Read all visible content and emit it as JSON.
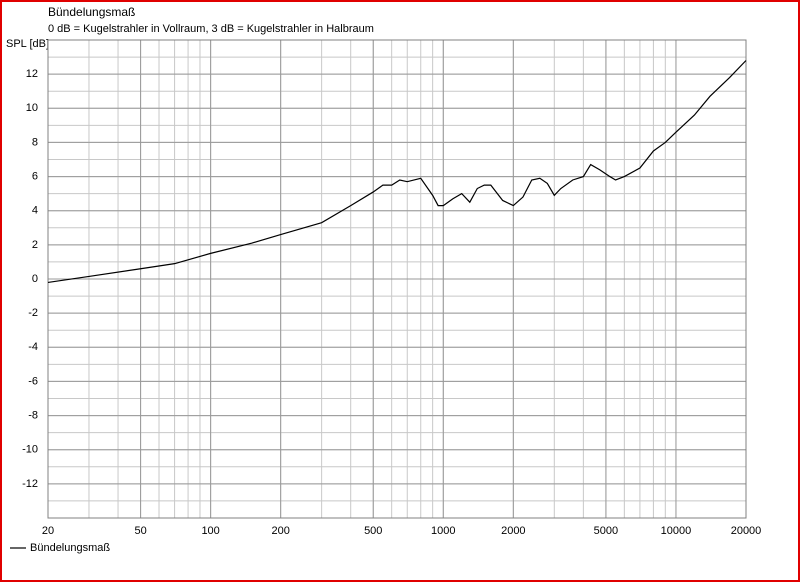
{
  "chart_data": {
    "type": "line",
    "title": "Bündelungsmaß",
    "subtitle": "0 dB = Kugelstrahler in Vollraum, 3 dB = Kugelstrahler in Halbraum",
    "y_label": "SPL [dB]",
    "x_scale": "log",
    "xlim": [
      20,
      20000
    ],
    "xticks": [
      20,
      50,
      100,
      200,
      500,
      1000,
      2000,
      5000,
      10000,
      20000
    ],
    "ylim": [
      -14,
      14
    ],
    "yticks": [
      -12,
      -10,
      -8,
      -6,
      -4,
      -2,
      0,
      2,
      4,
      6,
      8,
      10,
      12
    ],
    "grid": true,
    "minor_grid": true,
    "legend": "bottom-left",
    "x": [
      20,
      30,
      50,
      70,
      100,
      150,
      200,
      300,
      400,
      500,
      550,
      600,
      650,
      700,
      800,
      900,
      950,
      1000,
      1100,
      1200,
      1300,
      1400,
      1500,
      1600,
      1800,
      2000,
      2200,
      2400,
      2600,
      2800,
      3000,
      3200,
      3600,
      4000,
      4300,
      4700,
      5200,
      5500,
      6000,
      7000,
      8000,
      9000,
      10000,
      12000,
      14000,
      17000,
      20000
    ],
    "series": [
      {
        "name": "Bündelungsmaß",
        "color": "#000000",
        "values": [
          -0.2,
          0.15,
          0.6,
          0.9,
          1.5,
          2.1,
          2.6,
          3.3,
          4.3,
          5.1,
          5.5,
          5.5,
          5.8,
          5.7,
          5.9,
          4.9,
          4.3,
          4.3,
          4.7,
          5.0,
          4.5,
          5.3,
          5.5,
          5.5,
          4.6,
          4.3,
          4.8,
          5.8,
          5.9,
          5.6,
          4.9,
          5.3,
          5.8,
          6.0,
          6.7,
          6.4,
          6.0,
          5.8,
          6.0,
          6.5,
          7.5,
          8.0,
          8.6,
          9.6,
          10.7,
          11.8,
          12.8
        ]
      }
    ]
  }
}
